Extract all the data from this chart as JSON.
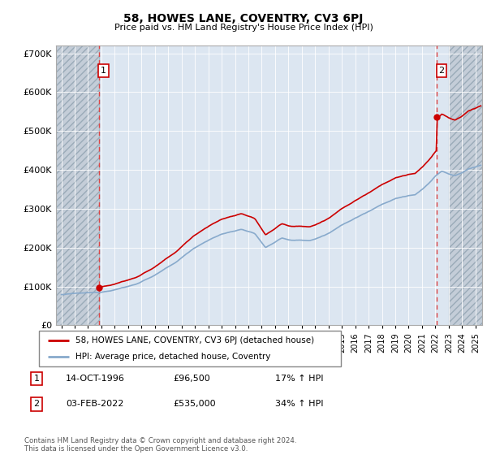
{
  "title": "58, HOWES LANE, COVENTRY, CV3 6PJ",
  "subtitle": "Price paid vs. HM Land Registry's House Price Index (HPI)",
  "hpi_label": "HPI: Average price, detached house, Coventry",
  "property_label": "58, HOWES LANE, COVENTRY, CV3 6PJ (detached house)",
  "transaction1_date": "14-OCT-1996",
  "transaction1_price": 96500,
  "transaction1_hpi": "17% ↑ HPI",
  "transaction2_date": "03-FEB-2022",
  "transaction2_price": 535000,
  "transaction2_hpi": "34% ↑ HPI",
  "footnote": "Contains HM Land Registry data © Crown copyright and database right 2024.\nThis data is licensed under the Open Government Licence v3.0.",
  "ylim": [
    0,
    720000
  ],
  "xlim_start": 1993.6,
  "xlim_end": 2025.5,
  "yticks": [
    0,
    100000,
    200000,
    300000,
    400000,
    500000,
    600000,
    700000
  ],
  "xtick_start": 1994,
  "xtick_end": 2026,
  "property_color": "#cc0000",
  "hpi_color": "#88aacc",
  "vline_color": "#dd4444",
  "background_color": "#dce6f1",
  "hatch_region_color": "#c4cdd8",
  "grid_color": "#ffffff"
}
